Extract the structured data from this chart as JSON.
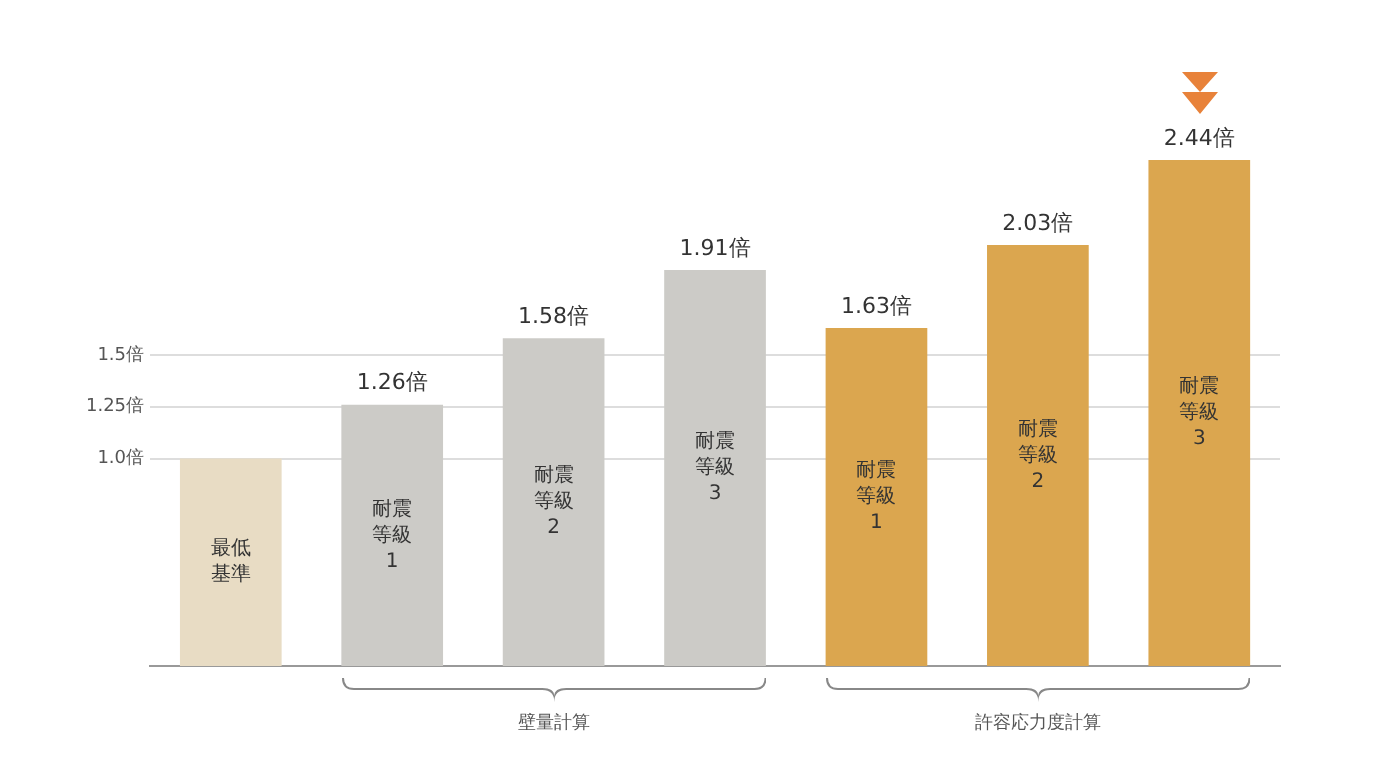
{
  "chart_data": {
    "type": "bar",
    "categories": [
      "最低基準",
      "耐震等級1",
      "耐震等級2",
      "耐震等級3",
      "耐震等級1",
      "耐震等級2",
      "耐震等級3"
    ],
    "values": [
      1.0,
      1.26,
      1.58,
      1.91,
      1.63,
      2.03,
      2.44
    ],
    "colors": [
      "#e8dcc4",
      "#cccbc7",
      "#cccbc7",
      "#cccbc7",
      "#dba64f",
      "#dba64f",
      "#dba64f"
    ],
    "value_labels": [
      null,
      "1.26倍",
      "1.58倍",
      "1.91倍",
      "1.63倍",
      "2.03倍",
      "2.44倍"
    ],
    "ylim": [
      0,
      2.44
    ],
    "yticks": [
      {
        "value": 1.0,
        "label": "1.0倍"
      },
      {
        "value": 1.25,
        "label": "1.25倍"
      },
      {
        "value": 1.5,
        "label": "1.5倍"
      }
    ],
    "grid": "y",
    "legend": false,
    "annotations": [
      "壁量計算",
      "許容応力度計算"
    ]
  }
}
